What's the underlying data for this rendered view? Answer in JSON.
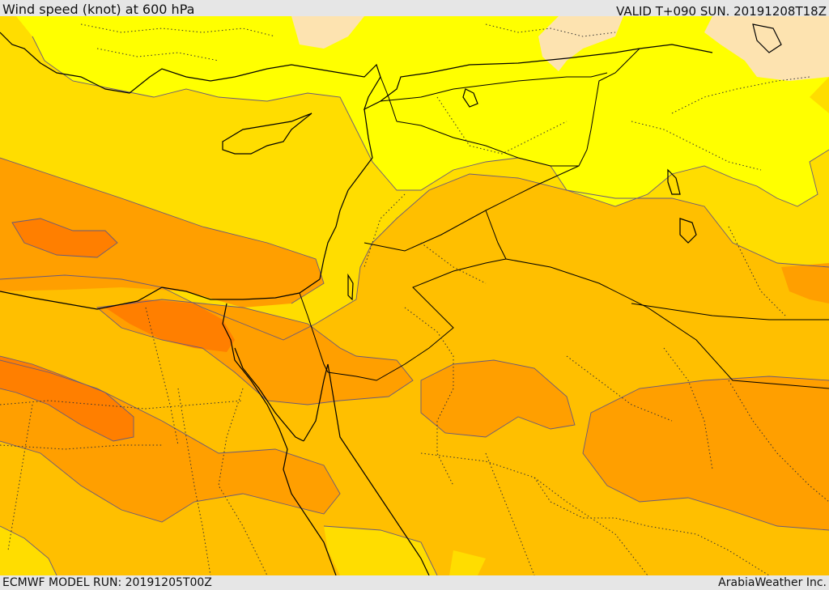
{
  "header": {
    "title": "Wind speed (knot) at 600 hPa",
    "valid": "VALID T+090 SUN. 20191208T18Z"
  },
  "footer": {
    "model_run": "ECMWF MODEL RUN: 20191205T00Z",
    "credit": "ArabiaWeather Inc."
  },
  "colors": {
    "band_lt10": "#ffff00",
    "band_10_20": "#ffdd00",
    "band_20_30": "#ffbf00",
    "band_30_40": "#ff9f00",
    "band_40_50": "#ff7f00",
    "band_calm": "#fde3b0",
    "coast": "#000000",
    "border": "#000000",
    "contour": "#6a5a7a"
  }
}
